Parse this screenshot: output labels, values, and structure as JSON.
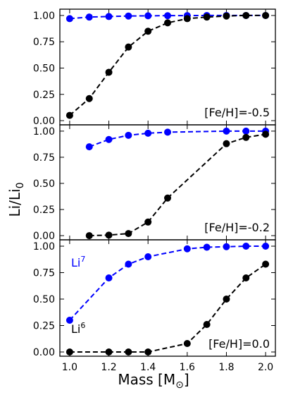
{
  "figure": {
    "ylabel_main": "Li/Li",
    "ylabel_sub": "0",
    "xlabel_main": "Mass [M",
    "xlabel_sym": "⊙",
    "xlabel_end": "]"
  },
  "chart_data": [
    {
      "type": "line",
      "annotation": "[Fe/H]=-0.5",
      "x_ticks": [
        "1.0",
        "1.2",
        "1.4",
        "1.6",
        "1.8",
        "2.0"
      ],
      "y_ticks": [
        "0.00",
        "0.25",
        "0.50",
        "0.75",
        "1.00"
      ],
      "xlim": [
        0.95,
        2.05
      ],
      "ylim": [
        -0.04,
        1.06
      ],
      "series": [
        {
          "id": "li7",
          "color": "#0000ff",
          "x": [
            1.0,
            1.1,
            1.2,
            1.3,
            1.4,
            1.5,
            1.6,
            1.7,
            1.8,
            1.9,
            2.0
          ],
          "y": [
            0.97,
            0.985,
            0.99,
            0.995,
            0.997,
            0.998,
            0.999,
            1.0,
            1.0,
            1.0,
            1.0
          ]
        },
        {
          "id": "li6",
          "color": "#000000",
          "x": [
            1.0,
            1.1,
            1.2,
            1.3,
            1.4,
            1.5,
            1.6,
            1.7,
            1.8,
            1.9,
            2.0
          ],
          "y": [
            0.05,
            0.21,
            0.46,
            0.7,
            0.85,
            0.93,
            0.97,
            0.985,
            0.995,
            1.0,
            1.0
          ]
        }
      ]
    },
    {
      "type": "line",
      "annotation": "[Fe/H]=-0.2",
      "x_ticks": [
        "1.0",
        "1.2",
        "1.4",
        "1.6",
        "1.8",
        "2.0"
      ],
      "y_ticks": [
        "0.00",
        "0.25",
        "0.50",
        "0.75",
        "1.00"
      ],
      "xlim": [
        0.95,
        2.05
      ],
      "ylim": [
        -0.04,
        1.06
      ],
      "series": [
        {
          "id": "li7",
          "color": "#0000ff",
          "x": [
            1.1,
            1.2,
            1.3,
            1.4,
            1.5,
            1.8,
            1.9,
            2.0
          ],
          "y": [
            0.85,
            0.92,
            0.96,
            0.98,
            0.99,
            1.0,
            1.0,
            1.0
          ]
        },
        {
          "id": "li6",
          "color": "#000000",
          "x": [
            1.1,
            1.2,
            1.3,
            1.4,
            1.5,
            1.8,
            1.9,
            2.0
          ],
          "y": [
            0.0,
            0.005,
            0.02,
            0.13,
            0.36,
            0.88,
            0.94,
            0.97
          ]
        }
      ]
    },
    {
      "type": "line",
      "annotation": "[Fe/H]=0.0",
      "x_ticks": [
        "1.0",
        "1.2",
        "1.4",
        "1.6",
        "1.8",
        "2.0"
      ],
      "y_ticks": [
        "0.00",
        "0.25",
        "0.50",
        "0.75",
        "1.00"
      ],
      "xlim": [
        0.95,
        2.05
      ],
      "ylim": [
        -0.04,
        1.06
      ],
      "label_li7": {
        "base": "Li",
        "sup": "7"
      },
      "label_li6": {
        "base": "Li",
        "sup": "6"
      },
      "series": [
        {
          "id": "li7",
          "color": "#0000ff",
          "x": [
            1.0,
            1.2,
            1.3,
            1.4,
            1.6,
            1.7,
            1.8,
            1.9,
            2.0
          ],
          "y": [
            0.3,
            0.7,
            0.83,
            0.9,
            0.975,
            0.99,
            0.995,
            1.0,
            1.0
          ]
        },
        {
          "id": "li6",
          "color": "#000000",
          "x": [
            1.0,
            1.2,
            1.3,
            1.4,
            1.6,
            1.7,
            1.8,
            1.9,
            2.0
          ],
          "y": [
            0.0,
            0.0,
            0.0,
            0.0,
            0.08,
            0.26,
            0.5,
            0.7,
            0.83
          ]
        }
      ]
    }
  ]
}
